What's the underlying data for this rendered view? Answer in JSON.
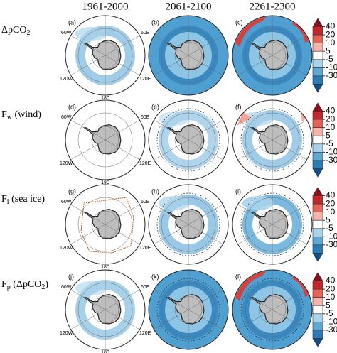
{
  "columns": [
    "1961-2000",
    "2061-2100",
    "2261-2300"
  ],
  "rows": [
    {
      "main": "ΔpCO",
      "sub": "2",
      "rest": ""
    },
    {
      "main": "F",
      "sub": "w",
      "rest": " (wind)"
    },
    {
      "main": "F",
      "sub": "i",
      "rest": " (sea ice)"
    },
    {
      "main": "F",
      "sub": "p",
      "rest": " (ΔpCO",
      "sub2": "2",
      "rest2": ")"
    }
  ],
  "panel_labels": [
    "(a)",
    "(b)",
    "(c)",
    "(d)",
    "(e)",
    "(f)",
    "(g)",
    "(h)",
    "(i)",
    "(j)",
    "(k)",
    "(l)"
  ],
  "lon_labels": {
    "w60": "60W",
    "e60": "60E",
    "w120": "120W",
    "e120": "120E",
    "s180": "180"
  },
  "colorbar": {
    "ticks": [
      40,
      20,
      10,
      5,
      -5,
      -10,
      -30
    ],
    "colors": [
      "#8b0e1a",
      "#c2272d",
      "#e5645a",
      "#f7b4ac",
      "#ffffff",
      "#a9d3ea",
      "#5fa8d2",
      "#2b7bb5",
      "#10508a"
    ]
  }
}
